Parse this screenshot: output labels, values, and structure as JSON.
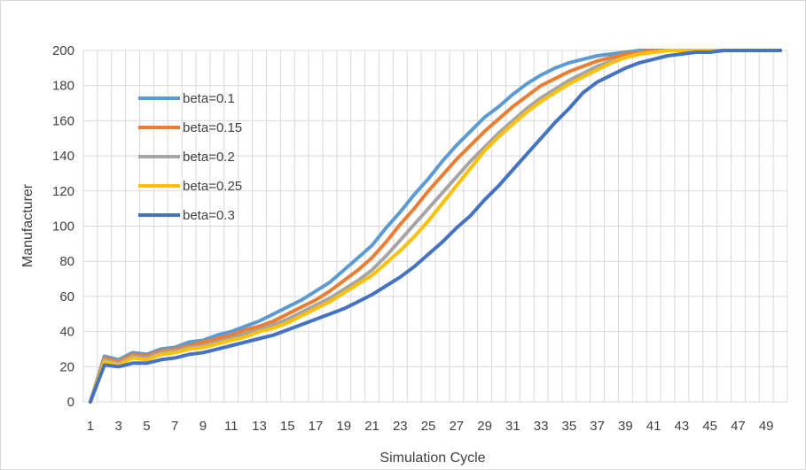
{
  "chart_data": {
    "type": "line",
    "title": "",
    "xlabel": "Simulation Cycle",
    "ylabel": "Manufacturer",
    "ylim": [
      0,
      200
    ],
    "yticks": [
      0,
      20,
      40,
      60,
      80,
      100,
      120,
      140,
      160,
      180,
      200
    ],
    "xlim": [
      1,
      50
    ],
    "xtick_labels": [
      1,
      3,
      5,
      7,
      9,
      11,
      13,
      15,
      17,
      19,
      21,
      23,
      25,
      27,
      29,
      31,
      33,
      35,
      37,
      39,
      41,
      43,
      45,
      47,
      49
    ],
    "grid": true,
    "legend_position": "top-left",
    "x": [
      1,
      2,
      3,
      4,
      5,
      6,
      7,
      8,
      9,
      10,
      11,
      12,
      13,
      14,
      15,
      16,
      17,
      18,
      19,
      20,
      21,
      22,
      23,
      24,
      25,
      26,
      27,
      28,
      29,
      30,
      31,
      32,
      33,
      34,
      35,
      36,
      37,
      38,
      39,
      40,
      41,
      42,
      43,
      44,
      45,
      46,
      47,
      48,
      49,
      50
    ],
    "series": [
      {
        "name": "beta=0.1",
        "color": "#5B9BD5",
        "values": [
          0,
          26,
          24,
          28,
          27,
          30,
          31,
          34,
          35,
          38,
          40,
          43,
          46,
          50,
          54,
          58,
          63,
          68,
          75,
          82,
          89,
          99,
          108,
          118,
          127,
          137,
          146,
          154,
          162,
          168,
          175,
          181,
          186,
          190,
          193,
          195,
          197,
          198,
          199,
          200,
          200,
          200,
          200,
          200,
          200,
          200,
          200,
          200,
          200,
          200
        ]
      },
      {
        "name": "beta=0.15",
        "color": "#ED7D31",
        "values": [
          0,
          25,
          23,
          27,
          26,
          29,
          30,
          32,
          34,
          36,
          38,
          41,
          43,
          46,
          50,
          54,
          58,
          63,
          69,
          75,
          82,
          91,
          101,
          110,
          120,
          129,
          138,
          146,
          154,
          161,
          168,
          174,
          180,
          184,
          188,
          191,
          194,
          196,
          198,
          199,
          200,
          200,
          200,
          200,
          200,
          200,
          200,
          200,
          200,
          200
        ]
      },
      {
        "name": "beta=0.2",
        "color": "#A5A5A5",
        "values": [
          0,
          24,
          22,
          26,
          25,
          28,
          29,
          31,
          32,
          34,
          36,
          39,
          41,
          44,
          47,
          51,
          55,
          59,
          64,
          69,
          75,
          83,
          92,
          101,
          110,
          119,
          128,
          137,
          145,
          153,
          160,
          167,
          173,
          178,
          183,
          187,
          191,
          194,
          196,
          198,
          199,
          200,
          200,
          200,
          200,
          200,
          200,
          200,
          200,
          200
        ]
      },
      {
        "name": "beta=0.25",
        "color": "#FFC000",
        "values": [
          0,
          23,
          21,
          25,
          24,
          27,
          28,
          30,
          31,
          33,
          35,
          37,
          40,
          42,
          45,
          49,
          53,
          57,
          62,
          67,
          72,
          79,
          86,
          94,
          103,
          113,
          123,
          133,
          143,
          151,
          158,
          165,
          171,
          176,
          181,
          185,
          189,
          193,
          196,
          198,
          199,
          200,
          200,
          200,
          200,
          200,
          200,
          200,
          200,
          200
        ]
      },
      {
        "name": "beta=0.3",
        "color": "#4472C4",
        "values": [
          0,
          21,
          20,
          22,
          22,
          24,
          25,
          27,
          28,
          30,
          32,
          34,
          36,
          38,
          41,
          44,
          47,
          50,
          53,
          57,
          61,
          66,
          71,
          77,
          84,
          91,
          99,
          106,
          115,
          123,
          132,
          141,
          150,
          159,
          167,
          176,
          182,
          186,
          190,
          193,
          195,
          197,
          198,
          199,
          199,
          200,
          200,
          200,
          200,
          200
        ]
      }
    ]
  }
}
